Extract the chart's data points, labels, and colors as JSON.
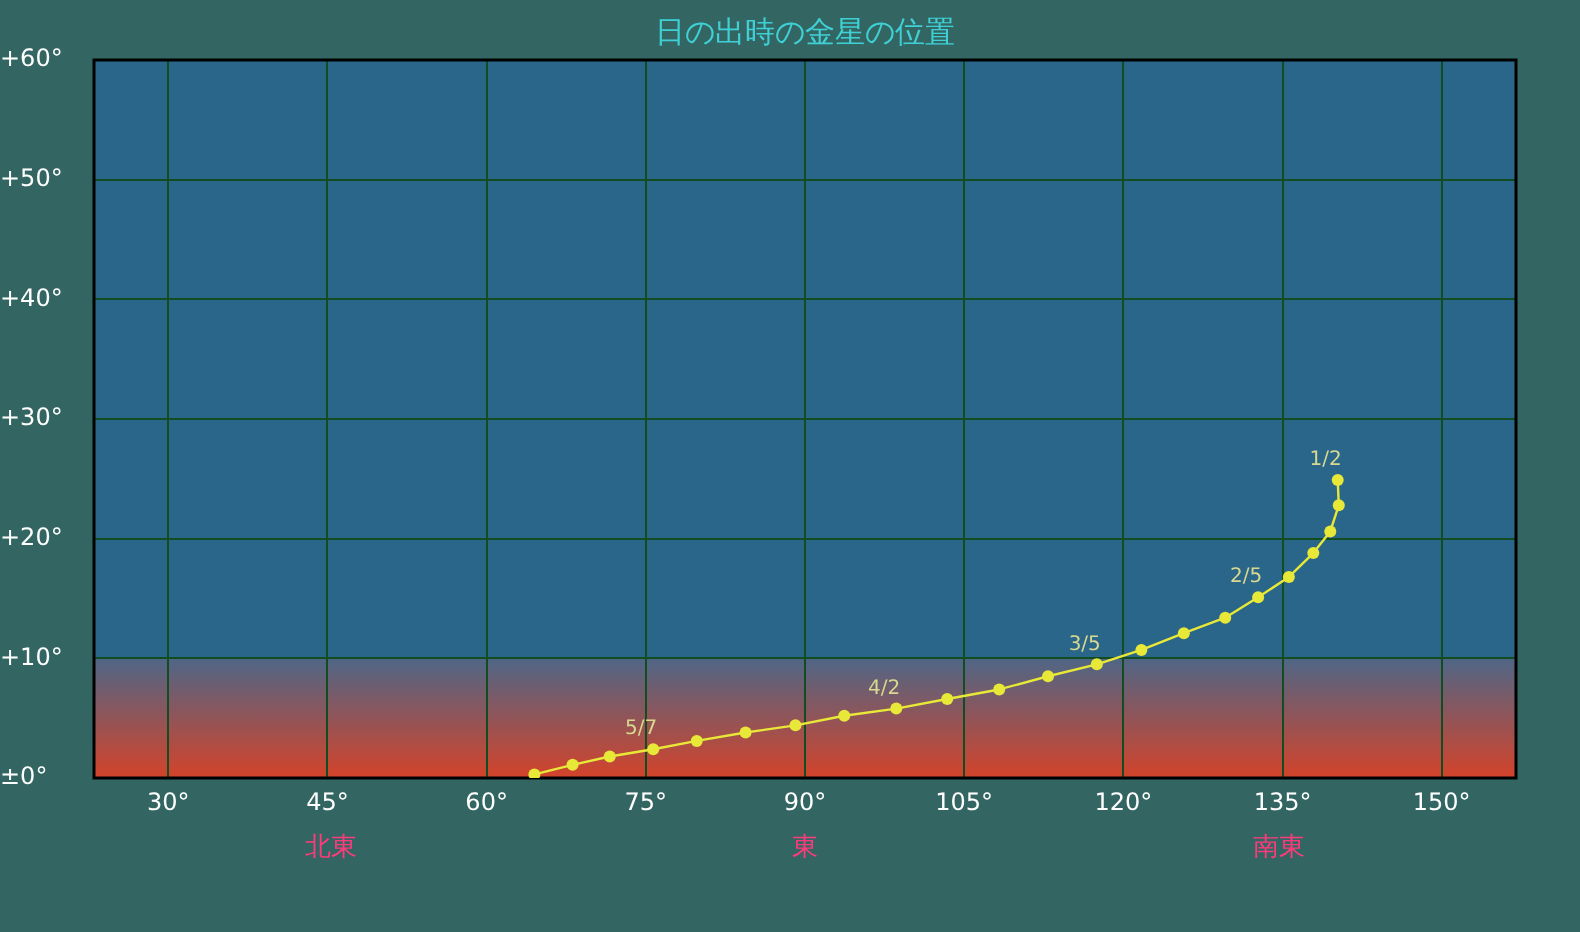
{
  "chart_data": {
    "type": "line",
    "title": "日の出時の金星の位置",
    "legend": false,
    "grid": true,
    "marker": "circle",
    "line_style": "solid",
    "xlim": [
      23,
      157
    ],
    "ylim": [
      0,
      60
    ],
    "xticks": [
      {
        "value": 30,
        "label": "30°"
      },
      {
        "value": 45,
        "label": "45°"
      },
      {
        "value": 60,
        "label": "60°"
      },
      {
        "value": 75,
        "label": "75°"
      },
      {
        "value": 90,
        "label": "90°"
      },
      {
        "value": 105,
        "label": "105°"
      },
      {
        "value": 120,
        "label": "120°"
      },
      {
        "value": 135,
        "label": "135°"
      },
      {
        "value": 150,
        "label": "150°"
      }
    ],
    "yticks": [
      {
        "value": 0,
        "label": "±0°"
      },
      {
        "value": 10,
        "label": "+10°"
      },
      {
        "value": 20,
        "label": "+20°"
      },
      {
        "value": 30,
        "label": "+30°"
      },
      {
        "value": 40,
        "label": "+40°"
      },
      {
        "value": 50,
        "label": "+50°"
      },
      {
        "value": 60,
        "label": "+60°"
      }
    ],
    "series": [
      {
        "color": "#e8e838",
        "x": [
          64.5,
          68.1,
          71.6,
          75.7,
          79.8,
          84.4,
          89.1,
          93.7,
          98.6,
          103.4,
          108.3,
          112.9,
          117.5,
          121.7,
          125.7,
          129.6,
          132.7,
          135.6,
          137.9,
          139.5,
          140.3,
          140.2
        ],
        "values": [
          0.3,
          1.1,
          1.8,
          2.4,
          3.1,
          3.8,
          4.4,
          5.2,
          5.8,
          6.6,
          7.4,
          8.5,
          9.5,
          10.7,
          12.1,
          13.4,
          15.1,
          16.8,
          18.8,
          20.6,
          22.8,
          24.9
        ]
      }
    ],
    "annotations": [
      {
        "text": "5/7",
        "x": 75.7,
        "y": 2.4
      },
      {
        "text": "4/2",
        "x": 98.6,
        "y": 5.8
      },
      {
        "text": "3/5",
        "x": 117.5,
        "y": 9.5
      },
      {
        "text": "2/5",
        "x": 132.7,
        "y": 15.1
      },
      {
        "text": "1/2",
        "x": 140.2,
        "y": 24.9
      },
      "北東",
      "東",
      "南東"
    ],
    "bands": [
      {
        "axis": "y",
        "from": 0,
        "to": 10,
        "color": "#d4432a"
      }
    ]
  }
}
